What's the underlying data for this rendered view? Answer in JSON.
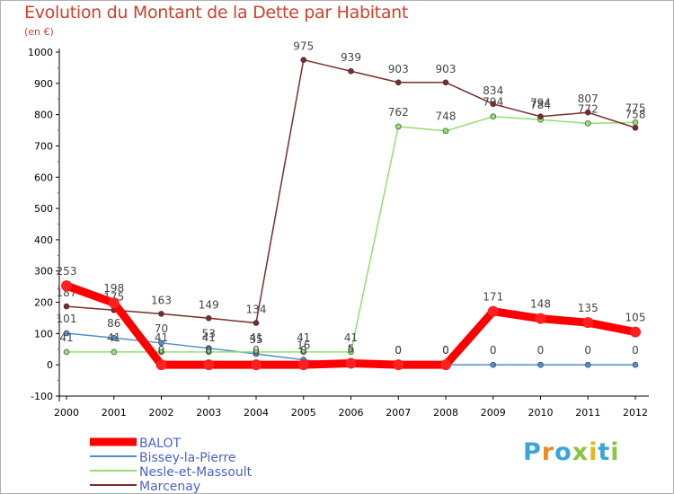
{
  "page_title": "Evolution du Montant de la Dette par Habitant",
  "unit_label": "(en €)",
  "logo_text": "Proxiti",
  "chart_data": {
    "type": "line",
    "title": "Evolution du Montant de la Dette par Habitant",
    "subtitle": "(en €)",
    "xlabel": "",
    "ylabel": "",
    "ylim": [
      -100,
      1000
    ],
    "y_ticks": [
      -100,
      0,
      100,
      200,
      300,
      400,
      500,
      600,
      700,
      800,
      900,
      1000
    ],
    "grid": false,
    "legend": "bottom-left",
    "x": [
      "2000",
      "2001",
      "2002",
      "2003",
      "2004",
      "2005",
      "2006",
      "2007",
      "2008",
      "2009",
      "2010",
      "2011",
      "2012"
    ],
    "series": [
      {
        "name": "BALOT",
        "color": "#ff0000",
        "values": [
          253,
          198,
          0,
          0,
          0,
          0,
          5,
          0,
          0,
          171,
          148,
          135,
          105
        ]
      },
      {
        "name": "Bissey-la-Pierre",
        "color": "#4f8fd3",
        "values": [
          101,
          86,
          70,
          53,
          35,
          16,
          0,
          0,
          0,
          0,
          0,
          0,
          0
        ]
      },
      {
        "name": "Nesle-et-Massoult",
        "color": "#92de6f",
        "values": [
          41,
          41,
          41,
          41,
          41,
          41,
          41,
          762,
          748,
          794,
          784,
          772,
          775
        ]
      },
      {
        "name": "Marcenay",
        "color": "#7a2c2c",
        "values": [
          187,
          175,
          163,
          149,
          134,
          975,
          939,
          903,
          903,
          834,
          794,
          807,
          758
        ]
      }
    ]
  }
}
